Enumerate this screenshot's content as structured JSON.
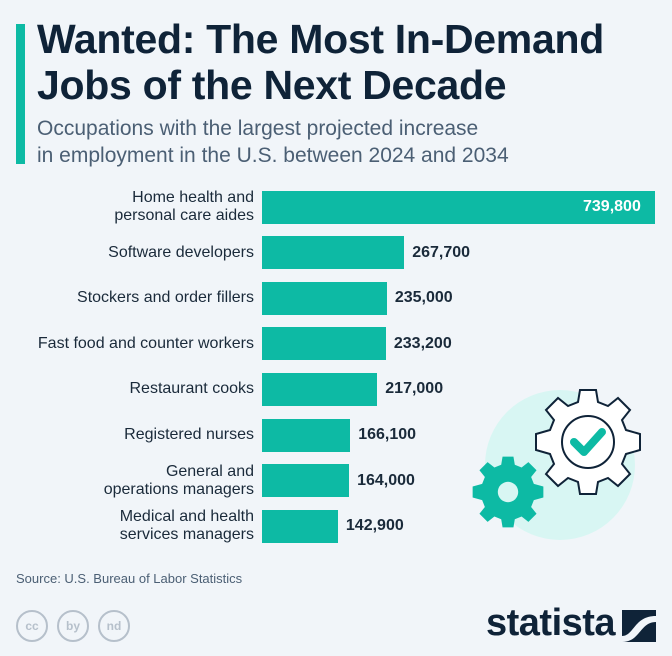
{
  "header": {
    "title_line1": "Wanted: The Most In-Demand",
    "title_line2": "Jobs of the Next Decade",
    "subtitle_line1": "Occupations with the largest projected increase",
    "subtitle_line2": "in employment in the U.S. between 2024 and 2034"
  },
  "chart_data": {
    "type": "bar",
    "orientation": "horizontal",
    "title": "Wanted: The Most In-Demand Jobs of the Next Decade",
    "categories": [
      [
        "Home health and",
        "personal care aides"
      ],
      [
        "Software developers"
      ],
      [
        "Stockers and order fillers"
      ],
      [
        "Fast food and counter workers"
      ],
      [
        "Restaurant cooks"
      ],
      [
        "Registered nurses"
      ],
      [
        "General and",
        "operations managers"
      ],
      [
        "Medical and health",
        "services managers"
      ]
    ],
    "values": [
      739800,
      267700,
      235000,
      233200,
      217000,
      166100,
      164000,
      142900
    ],
    "value_labels": [
      "739,800",
      "267,700",
      "235,000",
      "233,200",
      "217,000",
      "166,100",
      "164,000",
      "142,900"
    ],
    "color": "#0dbaa4",
    "xlim": [
      0,
      739800
    ]
  },
  "footer": {
    "source": "Source: U.S. Bureau of Labor Statistics",
    "logo": "statista",
    "cc_icons": [
      "cc",
      "by",
      "nd"
    ]
  },
  "colors": {
    "accent": "#0dbaa4",
    "title": "#0f2338"
  }
}
